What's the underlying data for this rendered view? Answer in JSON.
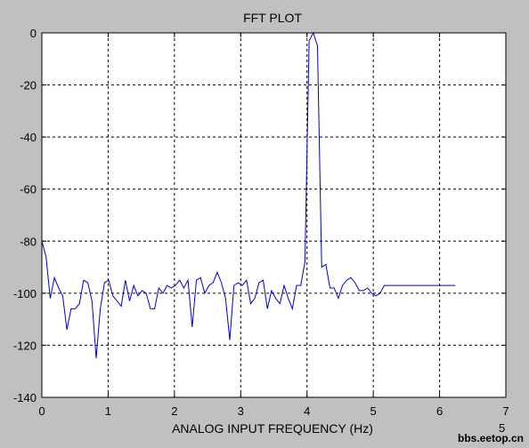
{
  "chart_data": {
    "type": "line",
    "title": "FFT PLOT",
    "xlabel": "ANALOG INPUT FREQUENCY (Hz)",
    "ylabel": "",
    "x_exponent": "5",
    "xlim": [
      0,
      7
    ],
    "ylim": [
      -140,
      0
    ],
    "x_ticks": [
      "0",
      "1",
      "2",
      "3",
      "4",
      "5",
      "6",
      "7"
    ],
    "y_ticks": [
      "0",
      "-20",
      "-40",
      "-60",
      "-80",
      "-100",
      "-120",
      "-140"
    ],
    "grid": true,
    "line_color": "#0000cc",
    "series": [
      {
        "x": [
          0.0,
          0.063,
          0.126,
          0.189,
          0.252,
          0.315,
          0.378,
          0.441,
          0.504,
          0.567,
          0.63,
          0.693,
          0.756,
          0.819,
          0.882,
          0.945,
          1.008,
          1.071,
          1.134,
          1.197,
          1.26,
          1.323,
          1.386,
          1.449,
          1.512,
          1.575,
          1.638,
          1.701,
          1.764,
          1.827,
          1.89,
          1.953,
          2.016,
          2.079,
          2.142,
          2.205,
          2.268,
          2.331,
          2.394,
          2.457,
          2.52,
          2.583,
          2.646,
          2.709,
          2.772,
          2.835,
          2.898,
          2.961,
          3.024,
          3.087,
          3.15,
          3.213,
          3.276,
          3.339,
          3.402,
          3.465,
          3.528,
          3.591,
          3.654,
          3.717,
          3.78,
          3.843,
          3.906,
          3.969,
          4.032,
          4.095,
          4.158,
          4.221,
          4.284,
          4.347,
          4.41,
          4.473,
          4.536,
          4.599,
          4.662,
          4.725,
          4.788,
          4.851,
          4.914,
          4.977,
          5.04,
          5.103,
          5.166,
          5.229,
          5.292,
          5.355,
          5.418,
          5.481,
          5.544,
          5.607,
          5.67,
          5.733,
          5.796,
          5.859,
          5.922,
          5.985,
          6.048,
          6.111,
          6.174,
          6.237
        ],
        "y": [
          -80,
          -86,
          -102,
          -94,
          -98,
          -101,
          -114,
          -106,
          -106,
          -104,
          -95,
          -96,
          -103,
          -125,
          -106,
          -96,
          -95,
          -101,
          -103,
          -105,
          -95,
          -103,
          -97,
          -101,
          -99,
          -100,
          -106,
          -106,
          -98,
          -100,
          -97,
          -98,
          -97,
          -95,
          -98,
          -95,
          -113,
          -95,
          -94,
          -100,
          -97,
          -96,
          -92,
          -96,
          -102,
          -118,
          -97,
          -96,
          -97,
          -95,
          -104,
          -102,
          -96,
          -95,
          -106,
          -99,
          -102,
          -104,
          -97,
          -102,
          -106,
          -97,
          -97,
          -88,
          -3,
          0,
          -5,
          -90,
          -89,
          -98,
          -98,
          -102,
          -97,
          -95,
          -94,
          -96,
          -99,
          -99,
          -98,
          -100,
          -101,
          -100,
          -97,
          -97,
          -97,
          -97,
          -97,
          -97,
          -97,
          -97,
          -97,
          -97,
          -97,
          -97,
          -97,
          -97,
          -97,
          -97,
          -97,
          -97
        ]
      }
    ]
  },
  "watermark": "bbs.eetop.cn"
}
